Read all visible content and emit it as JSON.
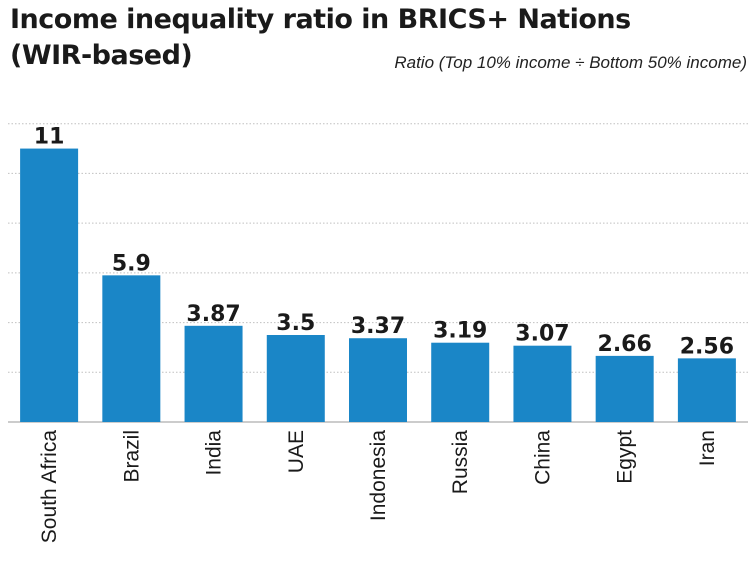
{
  "chart_data": {
    "type": "bar",
    "title_line1": "Income inequality ratio in BRICS+ Nations",
    "title_line2": "(WIR-based)",
    "subtitle": "Ratio (Top 10% income ÷ Bottom 50% income)",
    "categories": [
      "South Africa",
      "Brazil",
      "India",
      "UAE",
      "Indonesia",
      "Russia",
      "China",
      "Egypt",
      "Iran"
    ],
    "values": [
      11,
      5.9,
      3.87,
      3.5,
      3.37,
      3.19,
      3.07,
      2.66,
      2.56
    ],
    "value_labels": [
      "11",
      "5.9",
      "3.87",
      "3.5",
      "3.37",
      "3.19",
      "3.07",
      "2.66",
      "2.56"
    ],
    "ylim": [
      0,
      14
    ],
    "grid": true,
    "gridline_values": [
      2,
      4,
      6,
      8,
      10,
      12
    ],
    "bar_color": "#1a86c7",
    "grid_color": "#c0c0c0",
    "text_color": "#1a1a1a"
  }
}
